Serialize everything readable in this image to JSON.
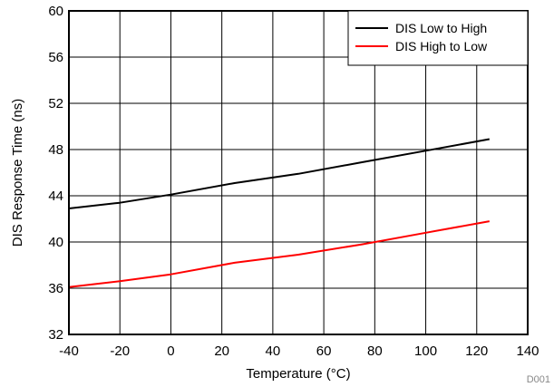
{
  "chart_data": {
    "type": "line",
    "title": "",
    "xlabel": "Temperature (°C)",
    "ylabel": "DIS Response Time (ns)",
    "xlim": [
      -40,
      140
    ],
    "ylim": [
      32,
      60
    ],
    "xticks": [
      -40,
      -20,
      0,
      20,
      40,
      60,
      80,
      100,
      120,
      140
    ],
    "yticks": [
      32,
      36,
      40,
      44,
      48,
      52,
      56,
      60
    ],
    "x_tick_labels": [
      "-40",
      "-20",
      "0",
      "20",
      "40",
      "60",
      "80",
      "100",
      "120",
      "140"
    ],
    "y_tick_labels": [
      "32",
      "36",
      "40",
      "44",
      "48",
      "52",
      "56",
      "60"
    ],
    "grid": true,
    "legend_position": "top-right",
    "series": [
      {
        "name": "DIS Low to High",
        "color": "#000000",
        "x": [
          -40,
          -20,
          0,
          25,
          50,
          75,
          100,
          125
        ],
        "y": [
          42.9,
          43.4,
          44.1,
          45.1,
          45.9,
          46.9,
          47.9,
          48.9
        ]
      },
      {
        "name": "DIS High to Low",
        "color": "#ff0000",
        "x": [
          -40,
          -20,
          0,
          25,
          50,
          75,
          100,
          125
        ],
        "y": [
          36.1,
          36.6,
          37.2,
          38.2,
          38.9,
          39.8,
          40.8,
          41.8
        ]
      }
    ],
    "annotations": [
      "D001"
    ]
  }
}
